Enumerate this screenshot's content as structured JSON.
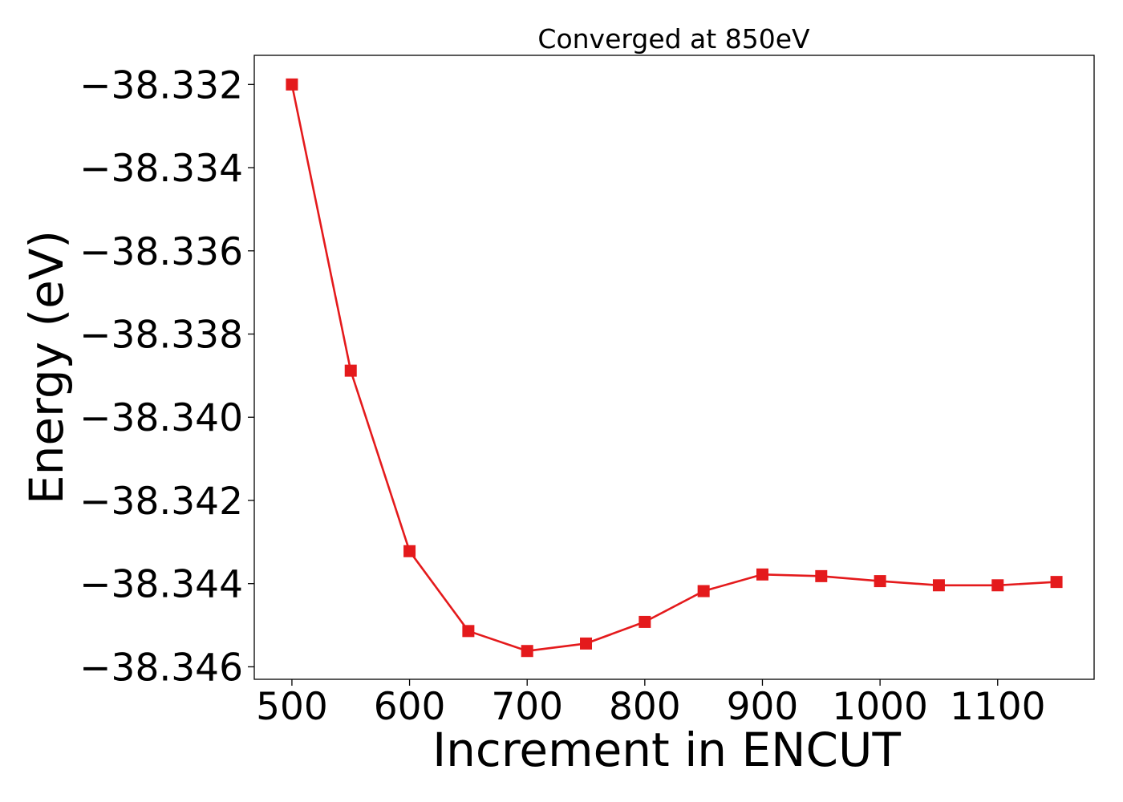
{
  "chart_data": {
    "type": "line",
    "title": "Converged at 850eV",
    "xlabel": "Increment in ENCUT",
    "ylabel": "Energy (eV)",
    "x": [
      500,
      550,
      600,
      650,
      700,
      750,
      800,
      850,
      900,
      950,
      1000,
      1050,
      1100,
      1150
    ],
    "series": [
      {
        "marker": "square",
        "color": "#e41a1c",
        "values": [
          -38.332,
          -38.33888,
          -38.34322,
          -38.34514,
          -38.34562,
          -38.34544,
          -38.34492,
          -38.34418,
          -38.34378,
          -38.34382,
          -38.34394,
          -38.34404,
          -38.34404,
          -38.34396
        ]
      }
    ],
    "xlim": [
      468,
      1182
    ],
    "ylim": [
      -38.3463,
      -38.3313
    ],
    "xticks": [
      500,
      600,
      700,
      800,
      900,
      1000,
      1100
    ],
    "xtick_labels": [
      "500",
      "600",
      "700",
      "800",
      "900",
      "1000",
      "1100"
    ],
    "yticks": [
      -38.332,
      -38.334,
      -38.336,
      -38.338,
      -38.34,
      -38.342,
      -38.344,
      -38.346
    ],
    "ytick_labels": [
      "−38.332",
      "−38.334",
      "−38.336",
      "−38.338",
      "−38.340",
      "−38.342",
      "−38.344",
      "−38.346"
    ],
    "grid": false,
    "legend": "none"
  }
}
